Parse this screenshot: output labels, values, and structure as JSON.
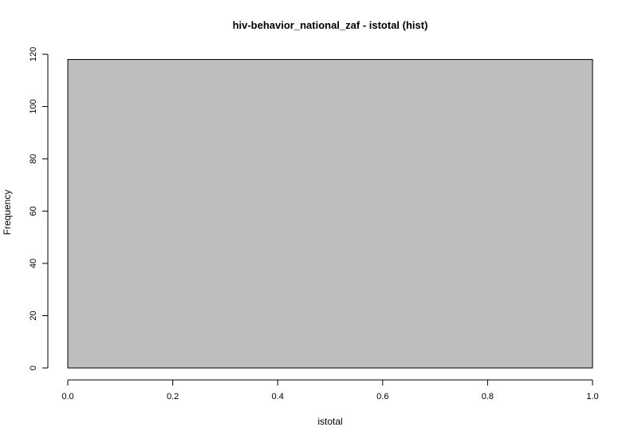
{
  "chart_data": {
    "type": "bar",
    "title": "hiv-behavior_national_zaf - istotal (hist)",
    "xlabel": "istotal",
    "ylabel": "Frequency",
    "bins": [
      {
        "start": 0.0,
        "end": 1.0,
        "count": 118
      }
    ],
    "xlim": [
      0,
      1
    ],
    "ylim": [
      0,
      120
    ],
    "xticks": [
      0.0,
      0.2,
      0.4,
      0.6,
      0.8,
      1.0
    ],
    "xtick_labels": [
      "0.0",
      "0.2",
      "0.4",
      "0.6",
      "0.8",
      "1.0"
    ],
    "yticks": [
      0,
      20,
      40,
      60,
      80,
      100,
      120
    ],
    "ytick_labels": [
      "0",
      "20",
      "40",
      "60",
      "80",
      "100",
      "120"
    ],
    "grid": false,
    "bar_color": "#bebebe",
    "edge_color": "#000000"
  }
}
